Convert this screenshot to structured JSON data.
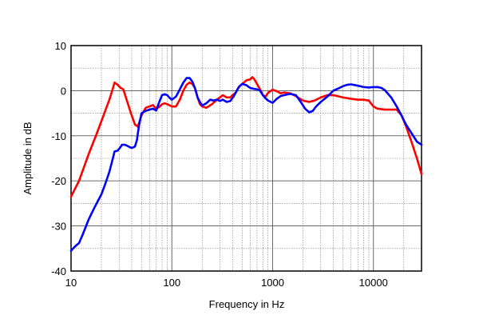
{
  "chart_data": {
    "type": "line",
    "title": "",
    "xlabel": "Frequency in Hz",
    "ylabel": "Amplitude in dB",
    "x_scale": "log",
    "xlim": [
      10,
      30000
    ],
    "ylim": [
      -40,
      10
    ],
    "x_ticks": [
      10,
      100,
      1000,
      10000
    ],
    "x_tick_labels": [
      "10",
      "100",
      "1000",
      "10000"
    ],
    "y_ticks": [
      10,
      0,
      -10,
      -20,
      -30,
      -40
    ],
    "y_tick_labels": [
      "10",
      "0",
      "-10",
      "-20",
      "-30",
      "-40"
    ],
    "grid": true,
    "legend": "none",
    "series": [
      {
        "color": "#ff0000",
        "points": [
          [
            10,
            -23.5
          ],
          [
            12,
            -20
          ],
          [
            15,
            -14
          ],
          [
            18,
            -9.5
          ],
          [
            21,
            -5.5
          ],
          [
            24,
            -2
          ],
          [
            26,
            0.5
          ],
          [
            27,
            1.8
          ],
          [
            29,
            1.3
          ],
          [
            31,
            0.6
          ],
          [
            33,
            0.3
          ],
          [
            35,
            -1.5
          ],
          [
            38,
            -4
          ],
          [
            40,
            -5.5
          ],
          [
            43,
            -7.5
          ],
          [
            46,
            -8
          ],
          [
            50,
            -5.5
          ],
          [
            55,
            -3.8
          ],
          [
            60,
            -3.5
          ],
          [
            65,
            -3.2
          ],
          [
            70,
            -4
          ],
          [
            75,
            -3.6
          ],
          [
            80,
            -3
          ],
          [
            85,
            -2.8
          ],
          [
            90,
            -3
          ],
          [
            100,
            -3.5
          ],
          [
            110,
            -3.5
          ],
          [
            120,
            -2
          ],
          [
            130,
            0
          ],
          [
            140,
            1.3
          ],
          [
            150,
            1.8
          ],
          [
            160,
            1.5
          ],
          [
            170,
            0.5
          ],
          [
            180,
            -1.5
          ],
          [
            190,
            -3
          ],
          [
            200,
            -3.5
          ],
          [
            220,
            -3.8
          ],
          [
            250,
            -3
          ],
          [
            280,
            -2
          ],
          [
            300,
            -1.5
          ],
          [
            320,
            -1
          ],
          [
            350,
            -1.5
          ],
          [
            380,
            -1.5
          ],
          [
            400,
            -1
          ],
          [
            430,
            -0.5
          ],
          [
            460,
            0.8
          ],
          [
            500,
            1.5
          ],
          [
            550,
            2.3
          ],
          [
            600,
            2.5
          ],
          [
            630,
            3
          ],
          [
            660,
            2.5
          ],
          [
            700,
            1.5
          ],
          [
            750,
            0.3
          ],
          [
            800,
            -1
          ],
          [
            850,
            -1.3
          ],
          [
            900,
            -0.5
          ],
          [
            950,
            -0.1
          ],
          [
            1000,
            0.2
          ],
          [
            1100,
            -0.1
          ],
          [
            1200,
            -0.6
          ],
          [
            1300,
            -0.4
          ],
          [
            1500,
            -0.6
          ],
          [
            1700,
            -1.2
          ],
          [
            2000,
            -2.2
          ],
          [
            2300,
            -2.5
          ],
          [
            2600,
            -2.2
          ],
          [
            3000,
            -1.5
          ],
          [
            3500,
            -1
          ],
          [
            4000,
            -1
          ],
          [
            5000,
            -1.5
          ],
          [
            6000,
            -1.8
          ],
          [
            7000,
            -2
          ],
          [
            8000,
            -2
          ],
          [
            9000,
            -2.2
          ],
          [
            10000,
            -3.5
          ],
          [
            11000,
            -4
          ],
          [
            13000,
            -4.2
          ],
          [
            15000,
            -4.2
          ],
          [
            17000,
            -4.2
          ],
          [
            19000,
            -5.5
          ],
          [
            21000,
            -7.8
          ],
          [
            24000,
            -11.5
          ],
          [
            27000,
            -15
          ],
          [
            30000,
            -18.5
          ]
        ]
      },
      {
        "color": "#0000ff",
        "points": [
          [
            10,
            -35.5
          ],
          [
            11,
            -34.5
          ],
          [
            12,
            -33.8
          ],
          [
            13,
            -32
          ],
          [
            15,
            -28.5
          ],
          [
            17,
            -26
          ],
          [
            20,
            -23
          ],
          [
            22,
            -20.5
          ],
          [
            24,
            -18
          ],
          [
            26,
            -15
          ],
          [
            27,
            -13.5
          ],
          [
            29,
            -13.3
          ],
          [
            31,
            -12.5
          ],
          [
            32,
            -12
          ],
          [
            34,
            -12
          ],
          [
            36,
            -12.2
          ],
          [
            38,
            -12.5
          ],
          [
            40,
            -12.7
          ],
          [
            43,
            -12.4
          ],
          [
            45,
            -11
          ],
          [
            47,
            -8
          ],
          [
            50,
            -5
          ],
          [
            55,
            -4.5
          ],
          [
            60,
            -4.2
          ],
          [
            65,
            -4
          ],
          [
            70,
            -4.4
          ],
          [
            75,
            -2.5
          ],
          [
            80,
            -1
          ],
          [
            85,
            -0.8
          ],
          [
            90,
            -1
          ],
          [
            95,
            -1.6
          ],
          [
            100,
            -2
          ],
          [
            110,
            -1.3
          ],
          [
            120,
            0.3
          ],
          [
            130,
            1.8
          ],
          [
            140,
            2.8
          ],
          [
            150,
            2.8
          ],
          [
            160,
            2
          ],
          [
            170,
            0.5
          ],
          [
            180,
            -1.5
          ],
          [
            190,
            -2.5
          ],
          [
            200,
            -3.3
          ],
          [
            220,
            -2.8
          ],
          [
            240,
            -2
          ],
          [
            260,
            -2.2
          ],
          [
            280,
            -2
          ],
          [
            300,
            -2.3
          ],
          [
            320,
            -2
          ],
          [
            350,
            -2.5
          ],
          [
            380,
            -2.3
          ],
          [
            410,
            -1.3
          ],
          [
            440,
            0
          ],
          [
            470,
            1
          ],
          [
            500,
            1.5
          ],
          [
            550,
            1.2
          ],
          [
            600,
            0.6
          ],
          [
            650,
            0.4
          ],
          [
            700,
            0.3
          ],
          [
            750,
            0
          ],
          [
            800,
            -1
          ],
          [
            850,
            -1.7
          ],
          [
            900,
            -2.2
          ],
          [
            1000,
            -2.7
          ],
          [
            1100,
            -1.8
          ],
          [
            1200,
            -1.2
          ],
          [
            1300,
            -1
          ],
          [
            1500,
            -0.7
          ],
          [
            1700,
            -1
          ],
          [
            1900,
            -2.5
          ],
          [
            2100,
            -4
          ],
          [
            2300,
            -4.8
          ],
          [
            2500,
            -4.5
          ],
          [
            2700,
            -3.5
          ],
          [
            3000,
            -2.5
          ],
          [
            3500,
            -1.3
          ],
          [
            4000,
            0
          ],
          [
            4500,
            0.5
          ],
          [
            5000,
            1
          ],
          [
            5500,
            1.3
          ],
          [
            6000,
            1.4
          ],
          [
            7000,
            1.1
          ],
          [
            8000,
            0.8
          ],
          [
            9000,
            0.7
          ],
          [
            10000,
            0.8
          ],
          [
            11000,
            0.8
          ],
          [
            12000,
            0.6
          ],
          [
            13000,
            0.1
          ],
          [
            15000,
            -1.5
          ],
          [
            17000,
            -3.5
          ],
          [
            19000,
            -5.5
          ],
          [
            21000,
            -7.5
          ],
          [
            24000,
            -9.5
          ],
          [
            27000,
            -11.3
          ],
          [
            30000,
            -12
          ]
        ]
      }
    ]
  }
}
